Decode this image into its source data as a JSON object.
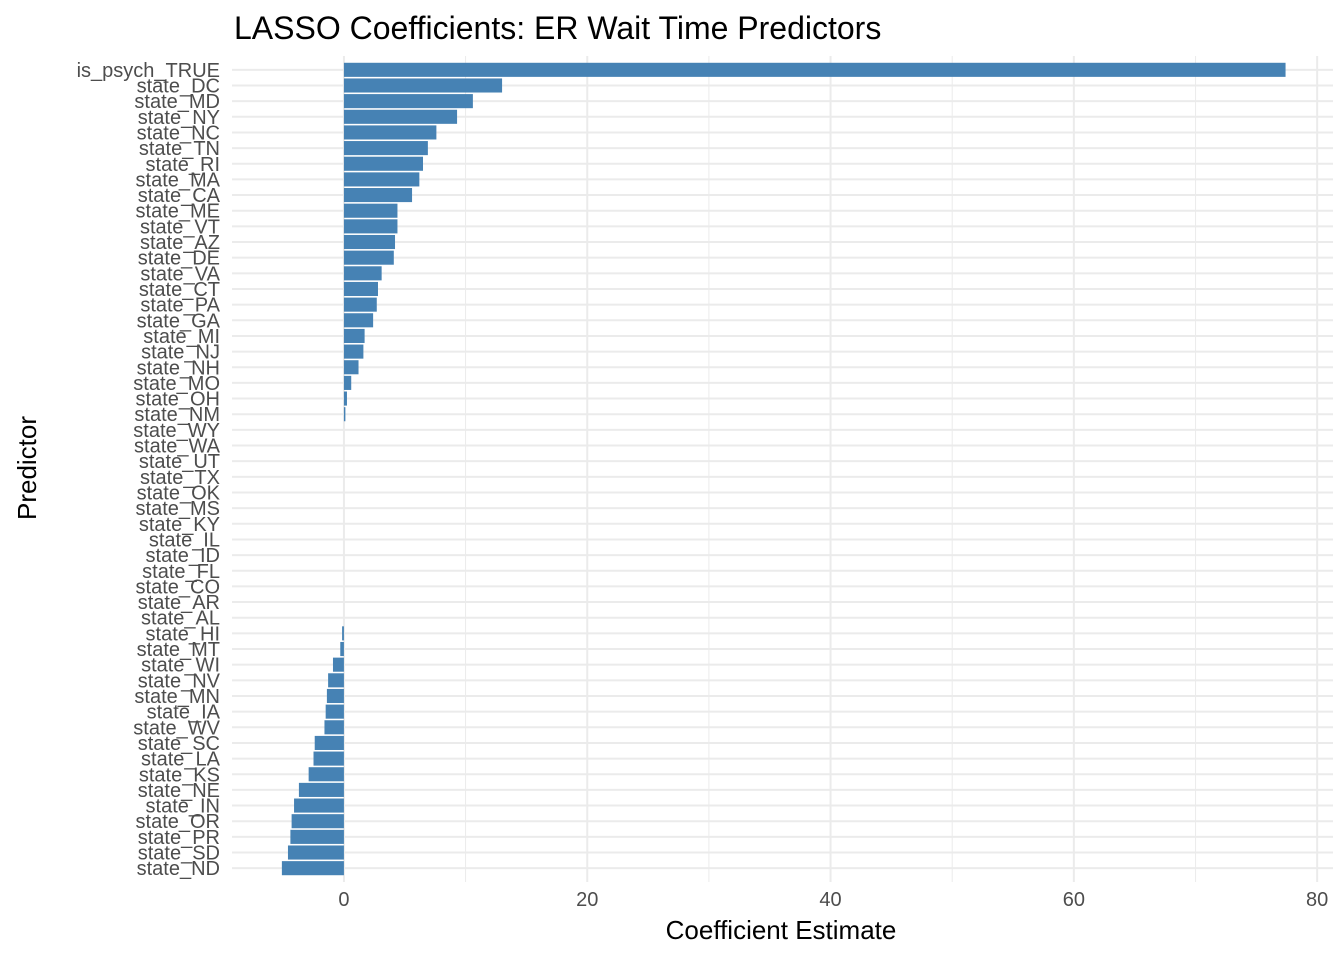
{
  "chart_data": {
    "type": "bar",
    "orientation": "horizontal",
    "title": "LASSO Coefficients: ER Wait Time Predictors",
    "xlabel": "Coefficient Estimate",
    "ylabel": "Predictor",
    "xlim": [
      -9.2,
      81.3
    ],
    "x_ticks": [
      0,
      20,
      40,
      60,
      80
    ],
    "grid": true,
    "bar_color": "#4682B4",
    "grid_color": "#EBEBEB",
    "categories": [
      "is_psych_TRUE",
      "state_DC",
      "state_MD",
      "state_NY",
      "state_NC",
      "state_TN",
      "state_RI",
      "state_MA",
      "state_CA",
      "state_ME",
      "state_VT",
      "state_AZ",
      "state_DE",
      "state_VA",
      "state_CT",
      "state_PA",
      "state_GA",
      "state_MI",
      "state_NJ",
      "state_NH",
      "state_MO",
      "state_OH",
      "state_NM",
      "state_WY",
      "state_WA",
      "state_UT",
      "state_TX",
      "state_OK",
      "state_MS",
      "state_KY",
      "state_IL",
      "state_ID",
      "state_FL",
      "state_CO",
      "state_AR",
      "state_AL",
      "state_HI",
      "state_MT",
      "state_WI",
      "state_NV",
      "state_MN",
      "state_IA",
      "state_WV",
      "state_SC",
      "state_LA",
      "state_KS",
      "state_NE",
      "state_IN",
      "state_OR",
      "state_PR",
      "state_SD",
      "state_ND"
    ],
    "values": [
      77.4,
      13.0,
      10.6,
      9.3,
      7.6,
      6.9,
      6.5,
      6.2,
      5.6,
      4.4,
      4.4,
      4.2,
      4.1,
      3.1,
      2.8,
      2.7,
      2.4,
      1.7,
      1.6,
      1.2,
      0.6,
      0.25,
      0.12,
      0,
      0,
      0,
      0,
      0,
      0,
      0,
      0,
      0,
      0,
      0,
      0,
      0,
      -0.15,
      -0.3,
      -0.9,
      -1.3,
      -1.4,
      -1.5,
      -1.6,
      -2.4,
      -2.5,
      -2.9,
      -3.7,
      -4.1,
      -4.3,
      -4.4,
      -4.6,
      -5.1
    ]
  }
}
